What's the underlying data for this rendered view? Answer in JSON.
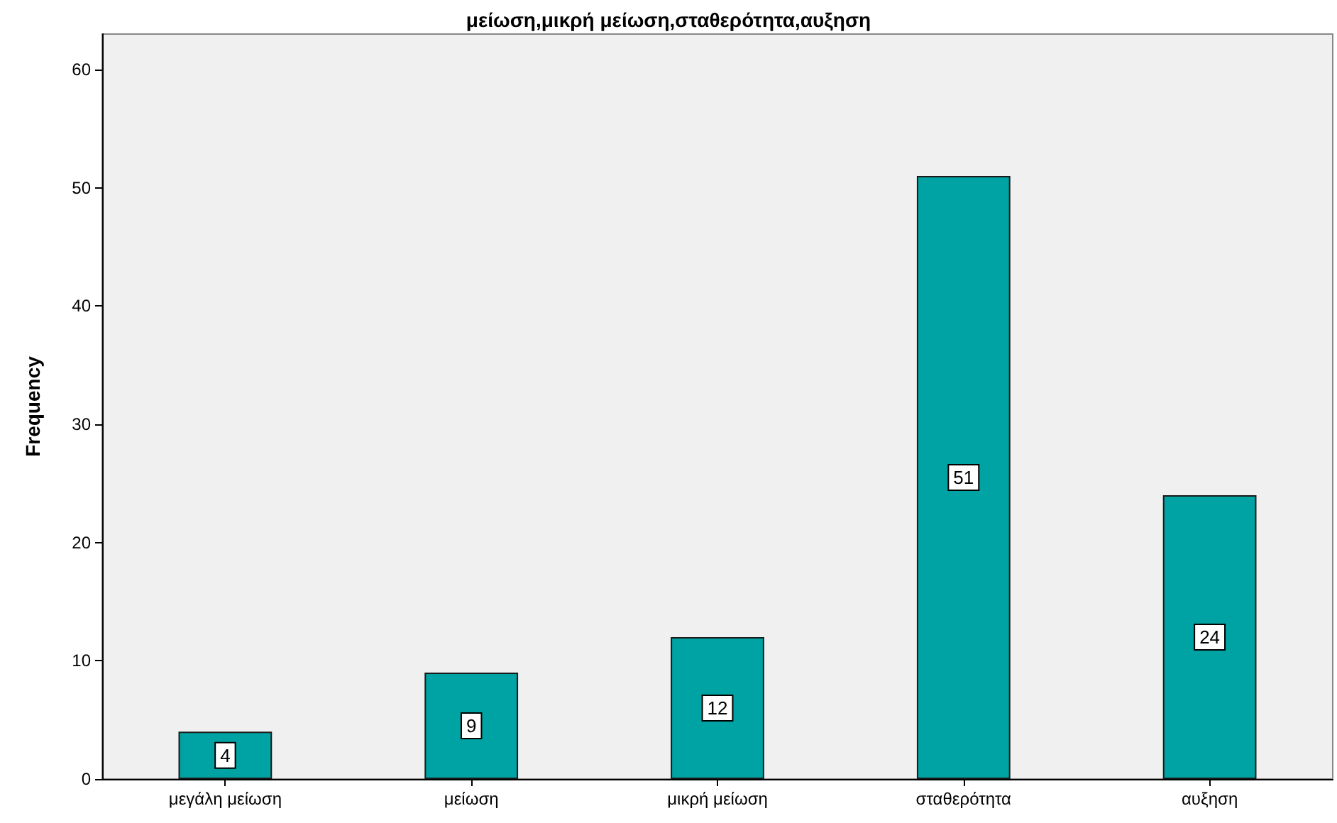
{
  "chart_data": {
    "type": "bar",
    "title": "μείωση,μικρή μείωση,σταθερότητα,αυξηση",
    "ylabel": "Frequency",
    "categories": [
      "μεγάλη μείωση",
      "μείωση",
      "μικρή μείωση",
      "σταθερότητα",
      "αυξηση"
    ],
    "values": [
      4,
      9,
      12,
      51,
      24
    ],
    "color": "#00a3a3",
    "ylim": [
      0,
      63
    ],
    "yticks": [
      0,
      10,
      20,
      30,
      40,
      50,
      60
    ],
    "grid": false,
    "data_labels": true
  }
}
